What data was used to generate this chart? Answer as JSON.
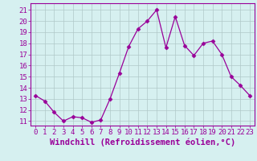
{
  "x": [
    0,
    1,
    2,
    3,
    4,
    5,
    6,
    7,
    8,
    9,
    10,
    11,
    12,
    13,
    14,
    15,
    16,
    17,
    18,
    19,
    20,
    21,
    22,
    23
  ],
  "y": [
    13.3,
    12.8,
    11.8,
    11.0,
    11.4,
    11.3,
    10.9,
    11.1,
    13.0,
    15.3,
    17.7,
    19.3,
    20.0,
    21.0,
    17.6,
    20.4,
    17.8,
    16.9,
    18.0,
    18.2,
    17.0,
    15.0,
    14.2,
    13.3
  ],
  "line_color": "#990099",
  "marker": "D",
  "markersize": 2.5,
  "linewidth": 0.9,
  "xlabel": "Windchill (Refroidissement éolien,°C)",
  "xlabel_fontsize": 7.5,
  "xticks": [
    0,
    1,
    2,
    3,
    4,
    5,
    6,
    7,
    8,
    9,
    10,
    11,
    12,
    13,
    14,
    15,
    16,
    17,
    18,
    19,
    20,
    21,
    22,
    23
  ],
  "yticks": [
    11,
    12,
    13,
    14,
    15,
    16,
    17,
    18,
    19,
    20,
    21
  ],
  "ylim": [
    10.6,
    21.6
  ],
  "xlim": [
    -0.5,
    23.5
  ],
  "bg_color": "#d6f0f0",
  "grid_color": "#b0c8c8",
  "tick_fontsize": 6.5,
  "tick_color": "#990099",
  "spine_color": "#990099",
  "label_color": "#990099"
}
